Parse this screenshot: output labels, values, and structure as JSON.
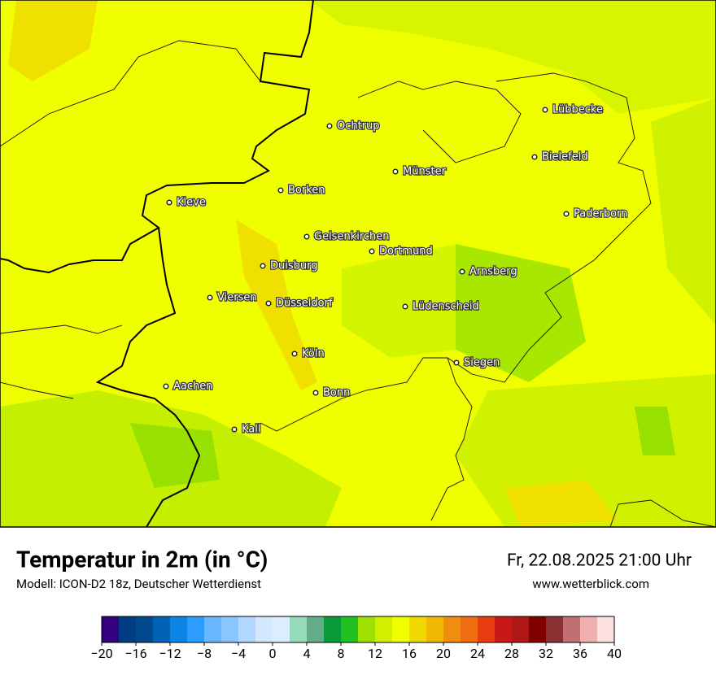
{
  "map": {
    "cities": [
      "Lübbecke",
      "Ochtrup",
      "Bielefeld",
      "Münster",
      "Borken",
      "Kleve",
      "Paderborn",
      "Gelsenkirchen",
      "Dortmund",
      "Duisburg",
      "Arnsberg",
      "Viersen",
      "Düsseldorf",
      "Lüdenscheid",
      "Köln",
      "Siegen",
      "Aachen",
      "Bonn",
      "Kall"
    ]
  },
  "footer": {
    "title": "Temperatur in 2m (in °C)",
    "model": "Modell: ICON-D2 18z, Deutscher Wetterdienst",
    "datetime": "Fr, 22.08.2025 21:00 Uhr",
    "website": "www.wetterblick.com"
  },
  "colorbar": {
    "range": [
      -20,
      40
    ],
    "colors": [
      "#35007f",
      "#003c82",
      "#00498e",
      "#0062b4",
      "#0a84e6",
      "#2d9cff",
      "#6ab6ff",
      "#8cc6ff",
      "#b2d8ff",
      "#d3e8ff",
      "#dbeeff",
      "#96dcbc",
      "#62ac8a",
      "#0a9a3a",
      "#20c020",
      "#9ee000",
      "#d0f000",
      "#f0ff00",
      "#f0d800",
      "#f0b800",
      "#f08c10",
      "#f06c10",
      "#e83c10",
      "#c81818",
      "#b01818",
      "#800000",
      "#8b3030",
      "#c07070",
      "#f0b0b0",
      "#ffe0e0"
    ],
    "ticks": [
      {
        "value": -20,
        "label": "−20"
      },
      {
        "value": -16,
        "label": "−16"
      },
      {
        "value": -12,
        "label": "−12"
      },
      {
        "value": -8,
        "label": "−8"
      },
      {
        "value": -4,
        "label": "−4"
      },
      0,
      4,
      8,
      12,
      16,
      20,
      24,
      28,
      32,
      36,
      40
    ]
  }
}
